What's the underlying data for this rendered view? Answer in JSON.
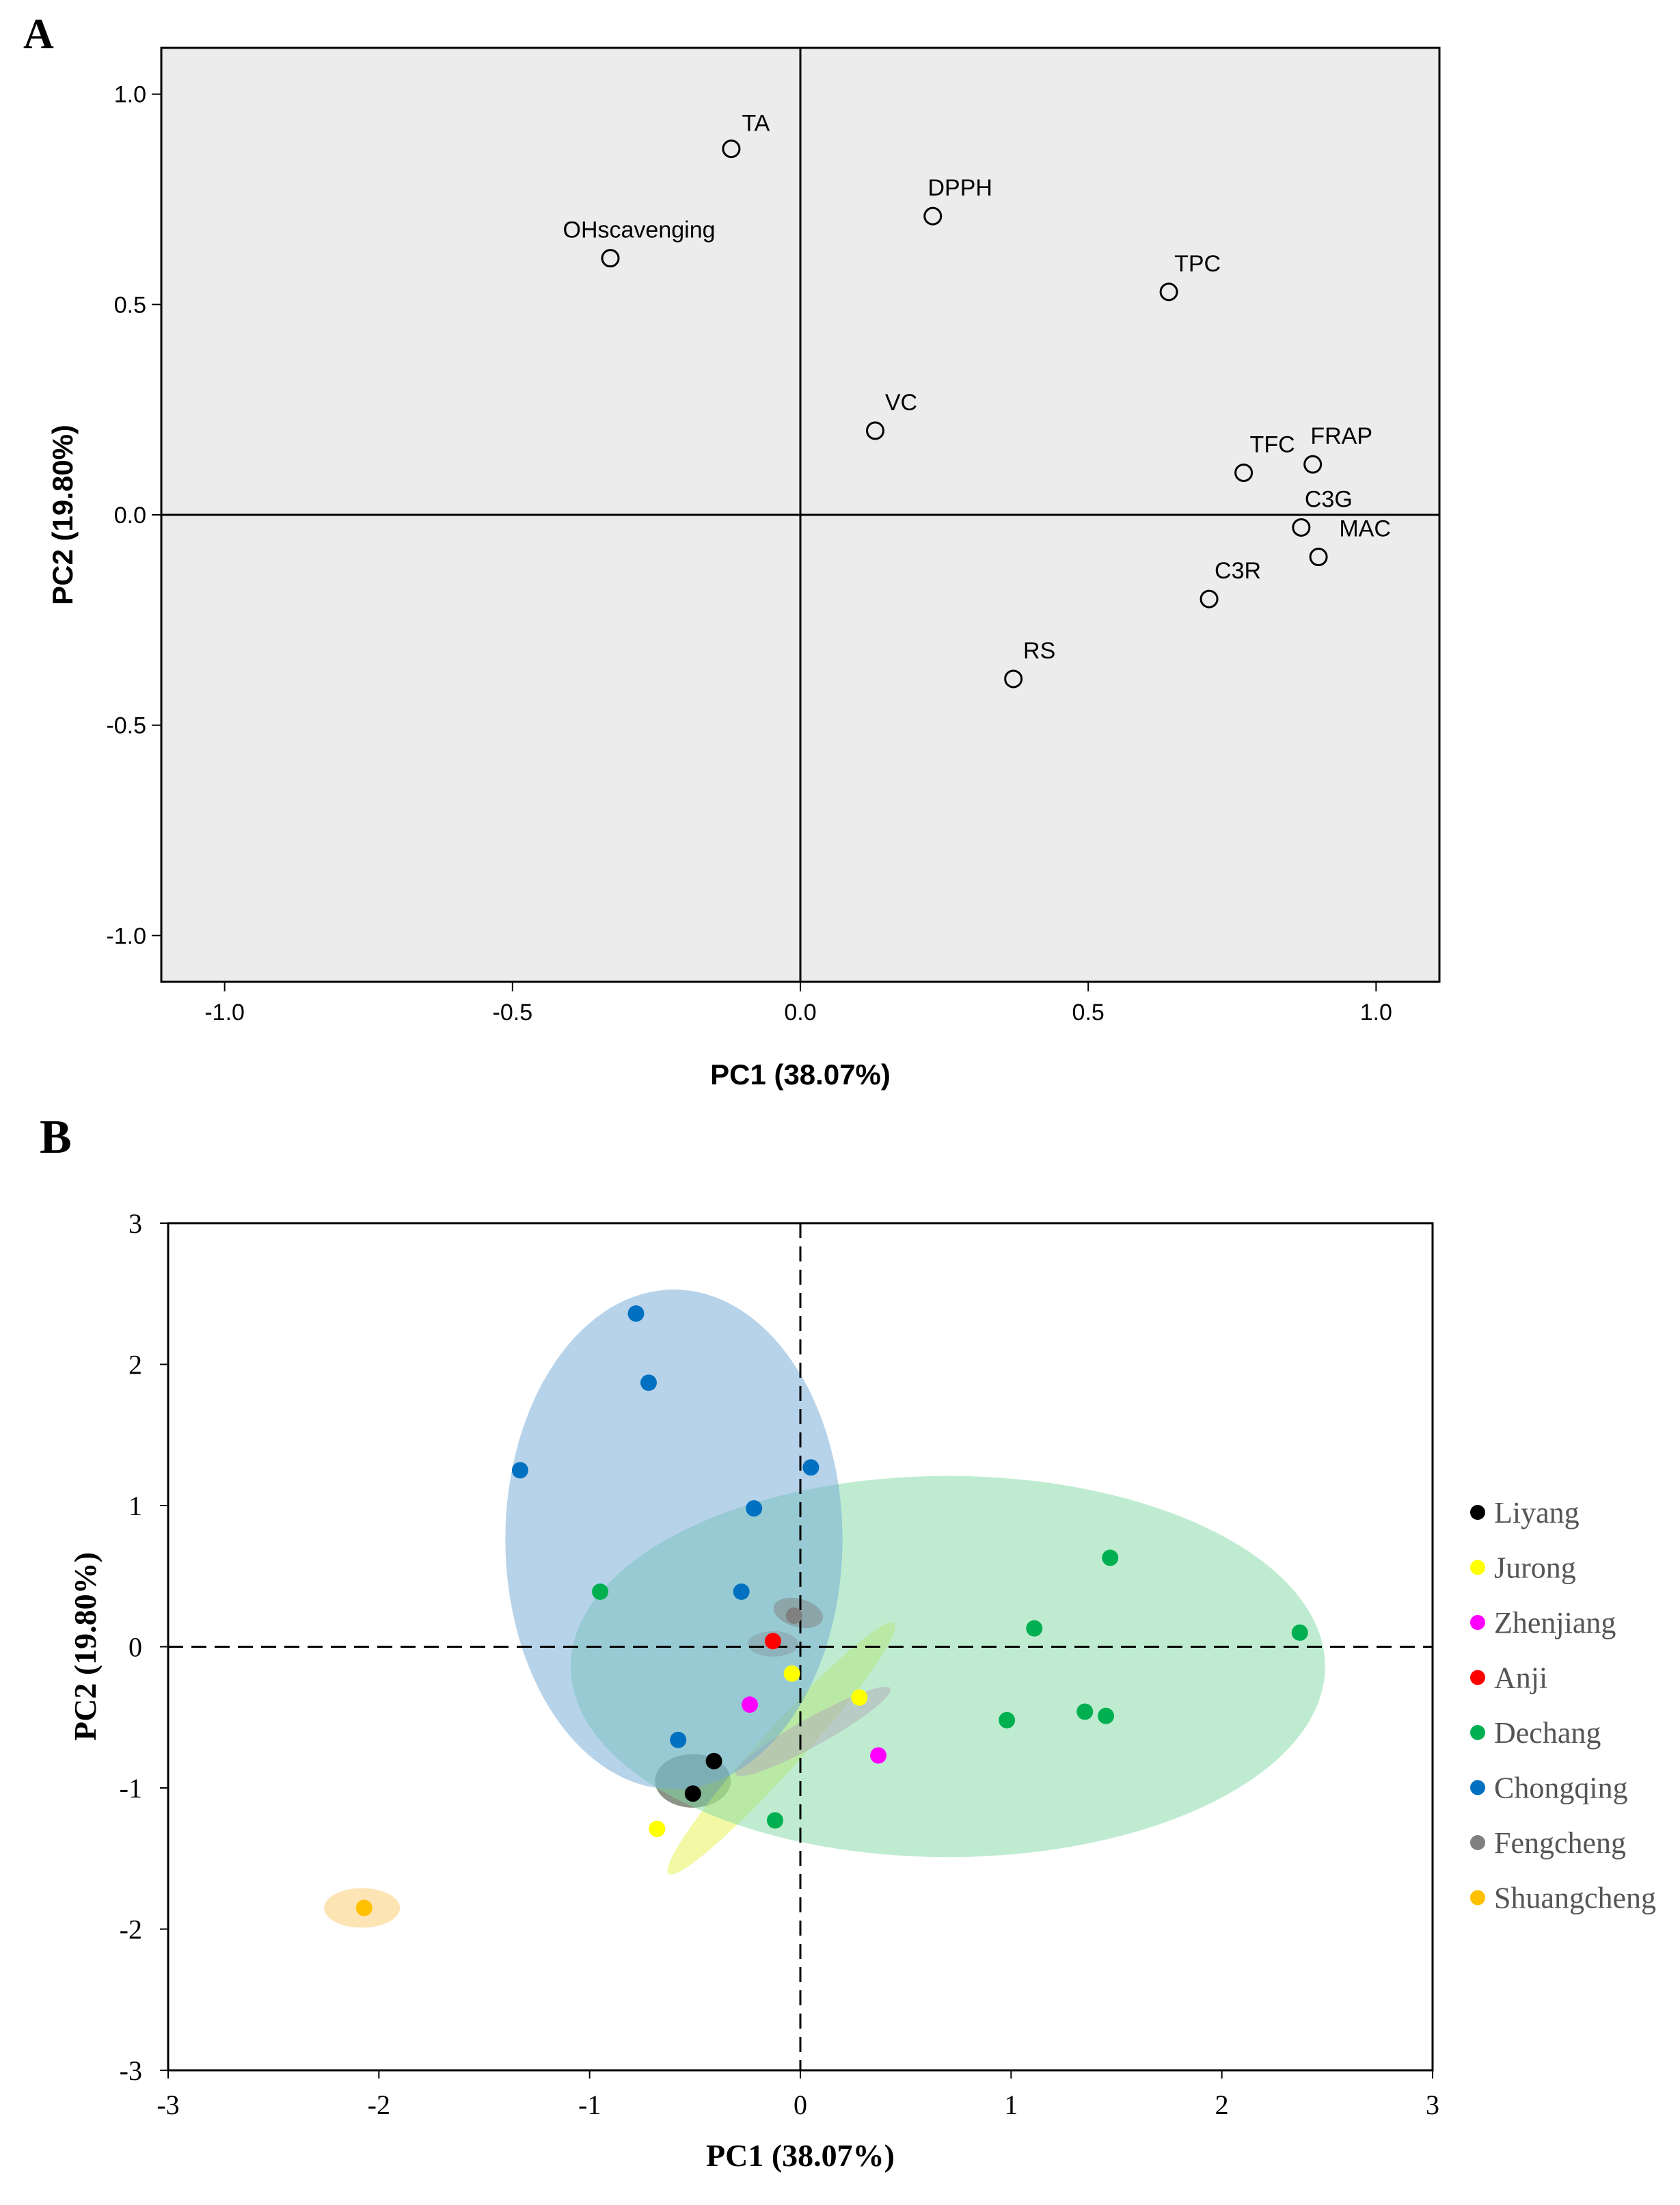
{
  "panels": {
    "a_label": "A",
    "b_label": "B"
  },
  "colors": {
    "plot_bg_a": "#ececec",
    "axis": "#000000"
  },
  "chart_data": [
    {
      "type": "scatter",
      "panel": "A",
      "title": "",
      "xlabel": "PC1 (38.07%)",
      "ylabel": "PC2 (19.80%)",
      "xlim": [
        -1.11,
        1.11
      ],
      "ylim": [
        -1.11,
        1.11
      ],
      "xticks": [
        -1.0,
        -0.5,
        0.0,
        0.5,
        1.0
      ],
      "yticks": [
        -1.0,
        -0.5,
        0.0,
        0.5,
        1.0
      ],
      "xtick_labels": [
        "-1.0",
        "-0.5",
        "0.0",
        "0.5",
        "1.0"
      ],
      "ytick_labels": [
        "-1.0",
        "-0.5",
        "0.0",
        "0.5",
        "1.0"
      ],
      "grid": false,
      "reference_lines": "solid lines at x=0 and y=0",
      "points": [
        {
          "label": "TA",
          "x": -0.12,
          "y": 0.87
        },
        {
          "label": "DPPH",
          "x": 0.23,
          "y": 0.71
        },
        {
          "label": "OHscavenging",
          "x": -0.33,
          "y": 0.61
        },
        {
          "label": "TPC",
          "x": 0.64,
          "y": 0.53
        },
        {
          "label": "VC",
          "x": 0.13,
          "y": 0.2
        },
        {
          "label": "TFC",
          "x": 0.77,
          "y": 0.1
        },
        {
          "label": "FRAP",
          "x": 0.89,
          "y": 0.12
        },
        {
          "label": "C3G",
          "x": 0.87,
          "y": -0.03
        },
        {
          "label": "MAC",
          "x": 0.9,
          "y": -0.1
        },
        {
          "label": "C3R",
          "x": 0.71,
          "y": -0.2
        },
        {
          "label": "RS",
          "x": 0.37,
          "y": -0.39
        }
      ]
    },
    {
      "type": "scatter",
      "panel": "B",
      "title": "",
      "xlabel": "PC1 (38.07%)",
      "ylabel": "PC2 (19.80%)",
      "xlim": [
        -3,
        3
      ],
      "ylim": [
        -3,
        3
      ],
      "xticks": [
        -3,
        -2,
        -1,
        0,
        1,
        2,
        3
      ],
      "yticks": [
        -3,
        -2,
        -1,
        0,
        1,
        2,
        3
      ],
      "xtick_labels": [
        "-3",
        "-2",
        "-1",
        "0",
        "1",
        "2",
        "3"
      ],
      "ytick_labels": [
        "-3",
        "-2",
        "-1",
        "0",
        "1",
        "2",
        "3"
      ],
      "grid": false,
      "reference_lines": "dashed lines at x=0 and y=0",
      "legend_position": "right",
      "series": [
        {
          "name": "Liyang",
          "color": "#000000",
          "ellipse_color": "#1a2a10",
          "ellipse": {
            "cx": -0.51,
            "cy": -0.95,
            "rx": 0.18,
            "ry": 0.19,
            "angle": 0
          },
          "points": [
            {
              "x": -0.41,
              "y": -0.81
            },
            {
              "x": -0.51,
              "y": -1.04
            }
          ]
        },
        {
          "name": "Jurong",
          "color": "#ffff00",
          "ellipse_color": "#e5f24a",
          "ellipse": {
            "cx": -0.09,
            "cy": -0.72,
            "rx": 0.8,
            "ry": 0.15,
            "angle": 48
          },
          "points": [
            {
              "x": -0.04,
              "y": -0.19
            },
            {
              "x": 0.28,
              "y": -0.36
            },
            {
              "x": -0.68,
              "y": -1.29
            }
          ]
        },
        {
          "name": "Zhenjiang",
          "color": "#ff00ff",
          "ellipse_color": "#e87acd",
          "ellipse": {
            "cx": 0.06,
            "cy": -0.6,
            "rx": 0.42,
            "ry": 0.1,
            "angle": 29
          },
          "points": [
            {
              "x": -0.24,
              "y": -0.41
            },
            {
              "x": 0.37,
              "y": -0.77
            }
          ]
        },
        {
          "name": "Anji",
          "color": "#ff0000",
          "ellipse_color": "#c0392b",
          "ellipse": {
            "cx": -0.13,
            "cy": 0.02,
            "rx": 0.12,
            "ry": 0.09,
            "angle": 0
          },
          "points": [
            {
              "x": -0.13,
              "y": 0.04
            }
          ]
        },
        {
          "name": "Dechang",
          "color": "#00b050",
          "ellipse_color": "#7fd9a4",
          "ellipse": {
            "cx": 0.7,
            "cy": -0.14,
            "rx": 1.79,
            "ry": 1.35,
            "angle": 0
          },
          "points": [
            {
              "x": 1.47,
              "y": 0.63
            },
            {
              "x": -0.95,
              "y": 0.39
            },
            {
              "x": 1.11,
              "y": 0.13
            },
            {
              "x": 2.37,
              "y": 0.1
            },
            {
              "x": 0.98,
              "y": -0.52
            },
            {
              "x": 1.35,
              "y": -0.46
            },
            {
              "x": 1.45,
              "y": -0.49
            },
            {
              "x": -0.12,
              "y": -1.23
            }
          ]
        },
        {
          "name": "Chongqing",
          "color": "#0070c0",
          "ellipse_color": "#6fa7d6",
          "ellipse": {
            "cx": -0.6,
            "cy": 0.76,
            "rx": 0.8,
            "ry": 1.77,
            "angle": 0
          },
          "points": [
            {
              "x": -0.78,
              "y": 2.36
            },
            {
              "x": -0.72,
              "y": 1.87
            },
            {
              "x": -1.33,
              "y": 1.25
            },
            {
              "x": 0.05,
              "y": 1.27
            },
            {
              "x": -0.22,
              "y": 0.98
            },
            {
              "x": -0.28,
              "y": 0.39
            },
            {
              "x": -0.58,
              "y": -0.66
            }
          ]
        },
        {
          "name": "Fengcheng",
          "color": "#808080",
          "ellipse_color": "#7f7f7f",
          "ellipse": {
            "cx": -0.01,
            "cy": 0.24,
            "rx": 0.12,
            "ry": 0.1,
            "angle": -15
          },
          "points": [
            {
              "x": -0.03,
              "y": 0.22
            }
          ]
        },
        {
          "name": "Shuangcheng",
          "color": "#ffc000",
          "ellipse_color": "#f9c96a",
          "ellipse": {
            "cx": -2.08,
            "cy": -1.85,
            "rx": 0.18,
            "ry": 0.14,
            "angle": 0
          },
          "points": [
            {
              "x": -2.07,
              "y": -1.85
            }
          ]
        }
      ]
    }
  ]
}
